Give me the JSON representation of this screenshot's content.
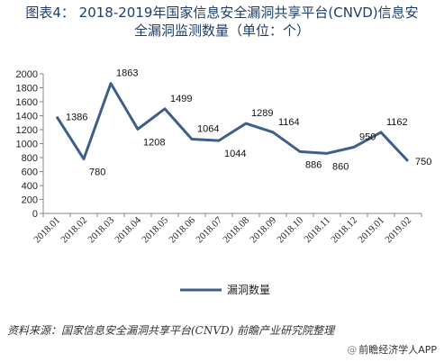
{
  "chart_data": {
    "type": "line",
    "title_line1": "图表4：  2018-2019年国家信息安全漏洞共享平台(CNVD)信息安",
    "title_line2": "全漏洞监测数量（单位：个）",
    "categories": [
      "2018.01",
      "2018.02",
      "2018.03",
      "2018.04",
      "2018.05",
      "2018.06",
      "2018.07",
      "2018.08",
      "2018.09",
      "2018.10",
      "2018.11",
      "2018.12",
      "2019.01",
      "2019.02"
    ],
    "series": [
      {
        "name": "漏洞数量",
        "values": [
          1386,
          780,
          1863,
          1208,
          1499,
          1064,
          1044,
          1289,
          1164,
          886,
          860,
          950,
          1162,
          750
        ],
        "color": "#3d5f8a"
      }
    ],
    "ylim": [
      0,
      2000
    ],
    "yticks": [
      "0",
      "200",
      "400",
      "600",
      "800",
      "1000",
      "1200",
      "1400",
      "1600",
      "1800",
      "2000"
    ],
    "grid": false,
    "legend_position": "bottom"
  },
  "footer": {
    "source": "资料来源：国家信息安全漏洞共享平台(CNVD) 前瞻产业研究院整理",
    "brand_at": "@",
    "brand": "前瞻经济学人APP"
  }
}
